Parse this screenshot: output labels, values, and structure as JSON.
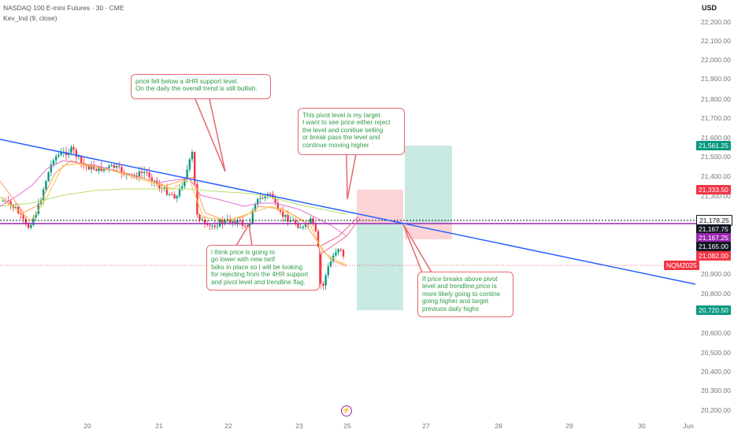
{
  "header": {
    "title": "NASDAQ 100 E-mini Futures · 30 · CME",
    "indicator": "Kev_Ind  (9, close)"
  },
  "currency": "USD",
  "y_axis": {
    "labels": [
      "22,200.00",
      "22,100.00",
      "22,000.00",
      "21,900.00",
      "21,800.00",
      "21,700.00",
      "21,600.00",
      "21,500.00",
      "21,400.00",
      "21,300.00",
      "20,900.00",
      "20,800.00",
      "20,600.00",
      "20,500.00",
      "20,400.00",
      "20,300.00",
      "20,200.00"
    ]
  },
  "x_axis": {
    "labels": [
      "20",
      "21",
      "22",
      "23",
      "25",
      "27",
      "28",
      "29",
      "30",
      "Jun"
    ]
  },
  "price_tags": [
    {
      "text": "21,561.25",
      "color": "#089981"
    },
    {
      "text": "21,333.50",
      "color": "#f23645"
    },
    {
      "text": "21,178.25",
      "color": "#ffffff",
      "text_color": "#131722",
      "border": "#131722"
    },
    {
      "text": "21,167.75",
      "color": "#131722"
    },
    {
      "text": "21,167.25",
      "color": "#9c27b0"
    },
    {
      "text": "21,165.00",
      "color": "#131722"
    },
    {
      "text": "21,082.00",
      "color": "#f23645"
    },
    {
      "text": "20,720.50",
      "color": "#089981"
    }
  ],
  "symbol_tag": {
    "text": "NQM2025",
    "color": "#f23645"
  },
  "notes": {
    "n1": [
      "price fell below a 4HR support level.",
      "On the daily the overall trend is still bullish."
    ],
    "n2": [
      "This pivot level is my target",
      "I want to see price either reject",
      "the level and conitiue selling",
      "or break pass the level and",
      "continue moving higher"
    ],
    "n3": [
      "i think price is going to",
      "go lower with new tarif",
      "falks in place so I will be looking",
      "for rejecting from the 4HR support",
      "and pivot level and trendline flag."
    ],
    "n4": [
      "If price breaks above pivot",
      "level and trendline,price is",
      "more likely going to contine",
      "going higher and target",
      "previuos daily highs"
    ]
  },
  "colors": {
    "up": "#089981",
    "down": "#f23645",
    "trendline": "#2962ff",
    "pivot": "#9c27b0",
    "note_border": "#e5676c",
    "note_text": "#2e9a47"
  }
}
